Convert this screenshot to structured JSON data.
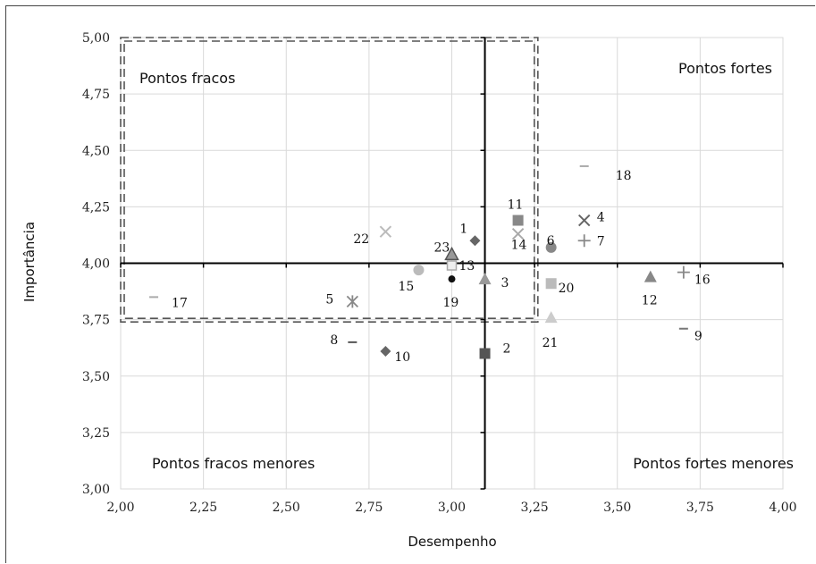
{
  "chart_data": {
    "type": "scatter",
    "title": "",
    "xlabel": "Desempenho",
    "ylabel": "Importância",
    "xlim": [
      2.0,
      4.0
    ],
    "ylim": [
      3.0,
      5.0
    ],
    "x_ticks": [
      "2,00",
      "2,25",
      "2,50",
      "2,75",
      "3,00",
      "3,25",
      "3,50",
      "3,75",
      "4,00"
    ],
    "y_ticks": [
      "3,00",
      "3,25",
      "3,50",
      "3,75",
      "4,00",
      "4,25",
      "4,50",
      "4,75",
      "5,00"
    ],
    "grid": true,
    "crosshair": {
      "x": 3.1,
      "y": 4.0
    },
    "highlight_box": {
      "x": [
        2.0,
        3.26
      ],
      "y": [
        3.74,
        5.0
      ]
    },
    "quadrants": {
      "top_left": "Pontos fracos",
      "top_right": "Pontos fortes",
      "bottom_left": "Pontos fracos menores",
      "bottom_right": "Pontos fortes menores"
    },
    "points": [
      {
        "label": "1",
        "x": 3.07,
        "y": 4.1,
        "marker": "diamond",
        "color": "#666666"
      },
      {
        "label": "2",
        "x": 3.1,
        "y": 3.6,
        "marker": "square",
        "color": "#555555"
      },
      {
        "label": "3",
        "x": 3.1,
        "y": 3.93,
        "marker": "triangle",
        "color": "#999999"
      },
      {
        "label": "4",
        "x": 3.4,
        "y": 4.19,
        "marker": "x",
        "color": "#666666"
      },
      {
        "label": "5",
        "x": 2.7,
        "y": 3.83,
        "marker": "star",
        "color": "#888888"
      },
      {
        "label": "6",
        "x": 3.3,
        "y": 4.07,
        "marker": "circle",
        "color": "#888888"
      },
      {
        "label": "7",
        "x": 3.4,
        "y": 4.1,
        "marker": "plus",
        "color": "#888888"
      },
      {
        "label": "8",
        "x": 2.7,
        "y": 3.65,
        "marker": "dash",
        "color": "#555555"
      },
      {
        "label": "9",
        "x": 3.7,
        "y": 3.71,
        "marker": "dash",
        "color": "#777777"
      },
      {
        "label": "10",
        "x": 2.8,
        "y": 3.61,
        "marker": "diamond",
        "color": "#666666"
      },
      {
        "label": "11",
        "x": 3.2,
        "y": 4.19,
        "marker": "square",
        "color": "#888888"
      },
      {
        "label": "12",
        "x": 3.6,
        "y": 3.94,
        "marker": "triangle",
        "color": "#888888"
      },
      {
        "label": "13",
        "x": 3.0,
        "y": 3.99,
        "marker": "square_open",
        "color": "#aaaaaa"
      },
      {
        "label": "14",
        "x": 3.2,
        "y": 4.13,
        "marker": "x",
        "color": "#aaaaaa"
      },
      {
        "label": "15",
        "x": 2.9,
        "y": 3.97,
        "marker": "circle",
        "color": "#bbbbbb"
      },
      {
        "label": "16",
        "x": 3.7,
        "y": 3.96,
        "marker": "plus",
        "color": "#888888"
      },
      {
        "label": "17",
        "x": 2.1,
        "y": 3.85,
        "marker": "dash",
        "color": "#aaaaaa"
      },
      {
        "label": "18",
        "x": 3.4,
        "y": 4.43,
        "marker": "dash",
        "color": "#aaaaaa"
      },
      {
        "label": "19",
        "x": 3.0,
        "y": 3.93,
        "marker": "circle_small",
        "color": "#111111"
      },
      {
        "label": "20",
        "x": 3.3,
        "y": 3.91,
        "marker": "square",
        "color": "#bbbbbb"
      },
      {
        "label": "21",
        "x": 3.3,
        "y": 3.76,
        "marker": "triangle",
        "color": "#cccccc"
      },
      {
        "label": "22",
        "x": 2.8,
        "y": 4.14,
        "marker": "x",
        "color": "#bbbbbb"
      },
      {
        "label": "23",
        "x": 3.0,
        "y": 4.04,
        "marker": "triangle_outline",
        "color": "#555555"
      }
    ]
  }
}
